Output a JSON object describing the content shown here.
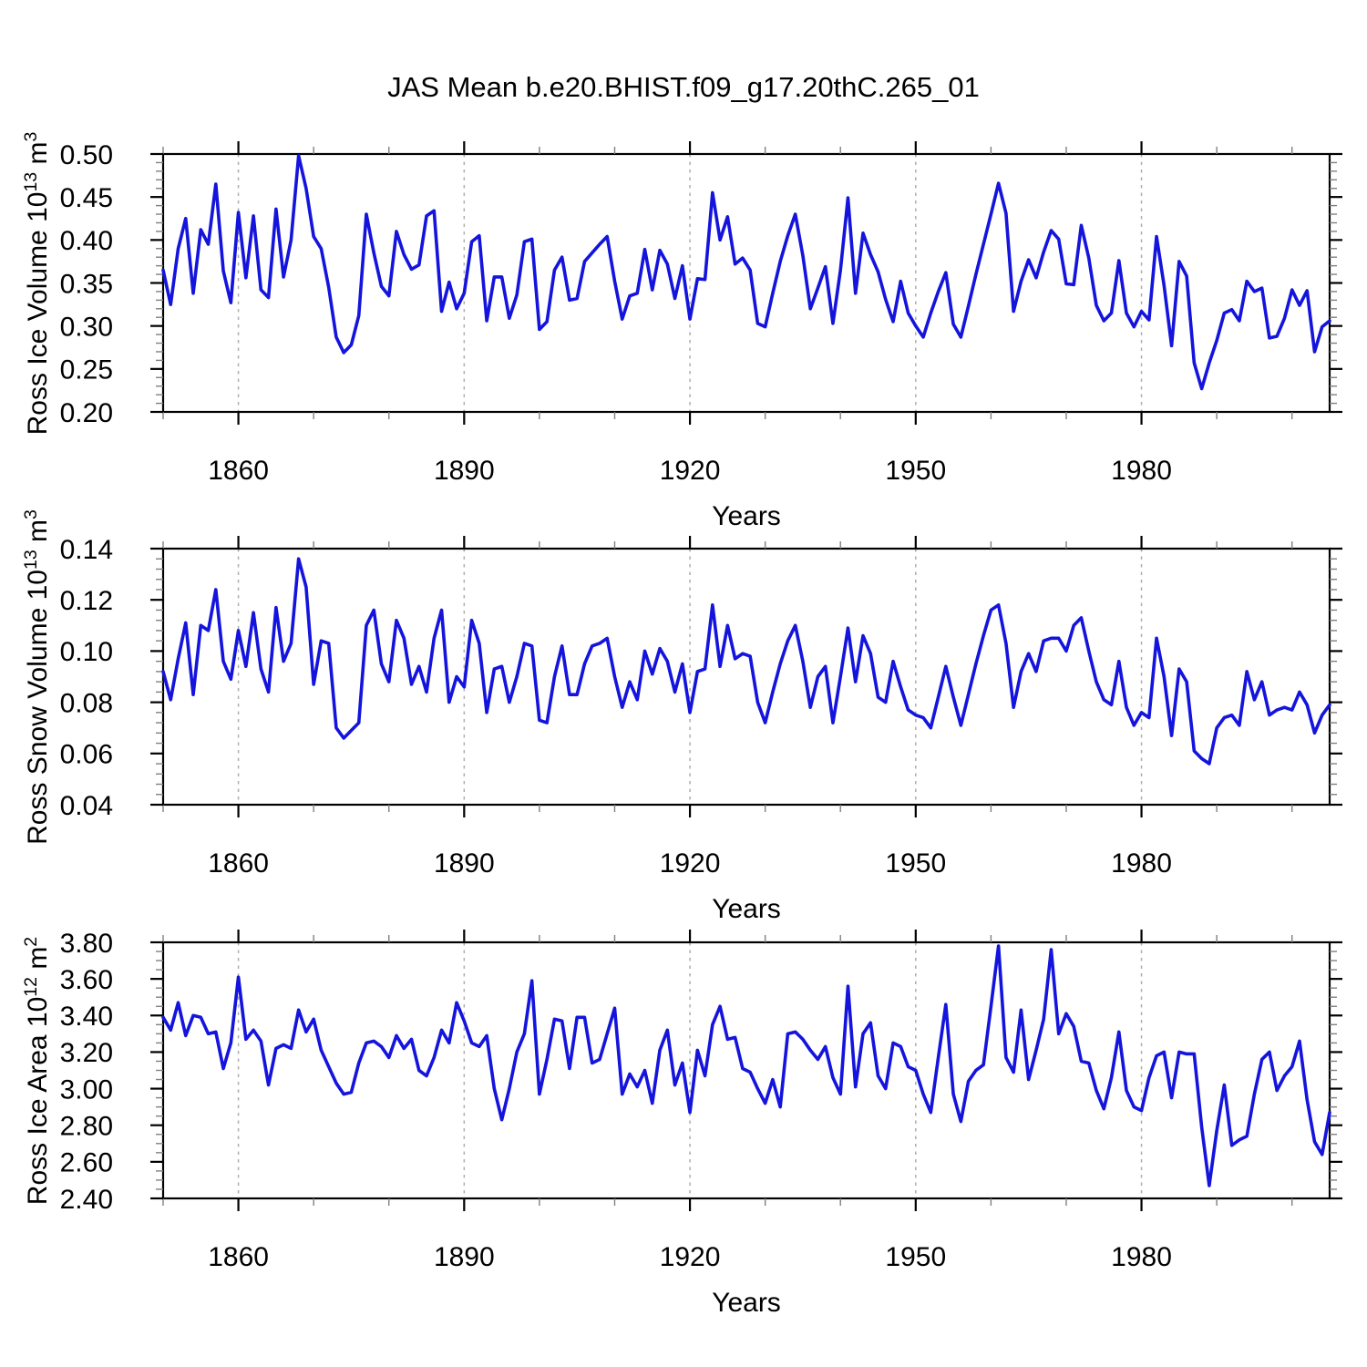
{
  "title": "JAS Mean b.e20.BHIST.f09_g17.20thC.265_01",
  "xlabel": "Years",
  "colors": {
    "line": "#1414dd",
    "grid": "#adadad",
    "axis": "#000000",
    "minor_tick": "#808080",
    "background": "#ffffff"
  },
  "chart_data": [
    {
      "type": "line",
      "name": "ross-ice-volume",
      "ylabel_plain": "Ross Ice Volume 10^13 m^3",
      "ylabel_parts": [
        {
          "text": "Ross Ice Volume 10"
        },
        {
          "text": "13",
          "sup": true
        },
        {
          "text": " m"
        },
        {
          "text": "3",
          "sup": true
        }
      ],
      "xlabel": "Years",
      "xlim": [
        1850,
        2005
      ],
      "x_start": 1850,
      "x_step": 1,
      "x_end": 2005,
      "xticks": [
        1860,
        1890,
        1920,
        1950,
        1980
      ],
      "x_minor_step": 10,
      "ylim": [
        0.2,
        0.5
      ],
      "yticks": [
        0.2,
        0.25,
        0.3,
        0.35,
        0.4,
        0.45,
        0.5
      ],
      "ytick_decimals": 2,
      "y_minor_step": 0.01,
      "grid": "vertical dashed at major xticks",
      "legend": "none",
      "values": [
        0.365,
        0.325,
        0.39,
        0.425,
        0.338,
        0.412,
        0.395,
        0.465,
        0.364,
        0.327,
        0.432,
        0.356,
        0.428,
        0.342,
        0.333,
        0.436,
        0.357,
        0.4,
        0.498,
        0.46,
        0.404,
        0.39,
        0.345,
        0.287,
        0.269,
        0.278,
        0.312,
        0.43,
        0.385,
        0.346,
        0.335,
        0.41,
        0.383,
        0.366,
        0.371,
        0.428,
        0.434,
        0.317,
        0.351,
        0.32,
        0.338,
        0.398,
        0.405,
        0.306,
        0.357,
        0.357,
        0.309,
        0.336,
        0.398,
        0.401,
        0.296,
        0.305,
        0.365,
        0.38,
        0.33,
        0.332,
        0.375,
        0.385,
        0.395,
        0.404,
        0.352,
        0.308,
        0.335,
        0.338,
        0.389,
        0.342,
        0.388,
        0.372,
        0.332,
        0.37,
        0.308,
        0.355,
        0.354,
        0.455,
        0.4,
        0.427,
        0.372,
        0.379,
        0.365,
        0.303,
        0.299,
        0.338,
        0.375,
        0.405,
        0.43,
        0.382,
        0.32,
        0.344,
        0.369,
        0.303,
        0.365,
        0.449,
        0.338,
        0.408,
        0.383,
        0.363,
        0.331,
        0.305,
        0.352,
        0.315,
        0.3,
        0.287,
        0.315,
        0.34,
        0.362,
        0.302,
        0.287,
        0.323,
        0.36,
        0.395,
        0.43,
        0.466,
        0.431,
        0.317,
        0.352,
        0.377,
        0.356,
        0.386,
        0.411,
        0.401,
        0.349,
        0.348,
        0.417,
        0.379,
        0.324,
        0.306,
        0.315,
        0.376,
        0.315,
        0.299,
        0.317,
        0.307,
        0.404,
        0.347,
        0.277,
        0.375,
        0.358,
        0.257,
        0.227,
        0.257,
        0.283,
        0.315,
        0.319,
        0.306,
        0.352,
        0.34,
        0.344,
        0.286,
        0.288,
        0.309,
        0.342,
        0.324,
        0.341,
        0.27,
        0.299,
        0.306
      ]
    },
    {
      "type": "line",
      "name": "ross-snow-volume",
      "ylabel_plain": "Ross Snow Volume 10^13 m^3",
      "ylabel_parts": [
        {
          "text": "Ross Snow Volume 10"
        },
        {
          "text": "13",
          "sup": true
        },
        {
          "text": " m"
        },
        {
          "text": "3",
          "sup": true
        }
      ],
      "xlabel": "Years",
      "xlim": [
        1850,
        2005
      ],
      "x_start": 1850,
      "x_step": 1,
      "x_end": 2005,
      "xticks": [
        1860,
        1890,
        1920,
        1950,
        1980
      ],
      "x_minor_step": 10,
      "ylim": [
        0.04,
        0.14
      ],
      "yticks": [
        0.04,
        0.06,
        0.08,
        0.1,
        0.12,
        0.14
      ],
      "ytick_decimals": 2,
      "y_minor_step": 0.004,
      "grid": "vertical dashed at major xticks",
      "legend": "none",
      "values": [
        0.092,
        0.081,
        0.097,
        0.111,
        0.083,
        0.11,
        0.108,
        0.124,
        0.096,
        0.089,
        0.108,
        0.094,
        0.115,
        0.093,
        0.084,
        0.117,
        0.096,
        0.103,
        0.136,
        0.125,
        0.087,
        0.104,
        0.103,
        0.07,
        0.066,
        0.069,
        0.072,
        0.11,
        0.116,
        0.095,
        0.088,
        0.112,
        0.105,
        0.087,
        0.094,
        0.084,
        0.105,
        0.116,
        0.08,
        0.09,
        0.086,
        0.112,
        0.103,
        0.076,
        0.093,
        0.094,
        0.08,
        0.09,
        0.103,
        0.102,
        0.073,
        0.072,
        0.09,
        0.102,
        0.083,
        0.083,
        0.095,
        0.102,
        0.103,
        0.105,
        0.09,
        0.078,
        0.088,
        0.081,
        0.1,
        0.091,
        0.101,
        0.096,
        0.084,
        0.095,
        0.076,
        0.092,
        0.093,
        0.118,
        0.094,
        0.11,
        0.097,
        0.099,
        0.098,
        0.08,
        0.072,
        0.084,
        0.095,
        0.104,
        0.11,
        0.096,
        0.078,
        0.09,
        0.094,
        0.072,
        0.09,
        0.109,
        0.088,
        0.106,
        0.099,
        0.082,
        0.08,
        0.096,
        0.086,
        0.077,
        0.075,
        0.074,
        0.07,
        0.082,
        0.094,
        0.082,
        0.071,
        0.083,
        0.095,
        0.106,
        0.116,
        0.118,
        0.103,
        0.078,
        0.092,
        0.099,
        0.092,
        0.104,
        0.105,
        0.105,
        0.1,
        0.11,
        0.113,
        0.1,
        0.088,
        0.081,
        0.079,
        0.096,
        0.078,
        0.071,
        0.076,
        0.074,
        0.105,
        0.09,
        0.067,
        0.093,
        0.088,
        0.061,
        0.058,
        0.056,
        0.07,
        0.074,
        0.075,
        0.071,
        0.092,
        0.081,
        0.088,
        0.075,
        0.077,
        0.078,
        0.077,
        0.084,
        0.079,
        0.068,
        0.075,
        0.079
      ]
    },
    {
      "type": "line",
      "name": "ross-ice-area",
      "ylabel_plain": "Ross Ice Area 10^12 m^2",
      "ylabel_parts": [
        {
          "text": "Ross Ice Area 10"
        },
        {
          "text": "12",
          "sup": true
        },
        {
          "text": " m"
        },
        {
          "text": "2",
          "sup": true
        }
      ],
      "xlabel": "Years",
      "xlim": [
        1850,
        2005
      ],
      "x_start": 1850,
      "x_step": 1,
      "x_end": 2005,
      "xticks": [
        1860,
        1890,
        1920,
        1950,
        1980
      ],
      "x_minor_step": 10,
      "ylim": [
        2.4,
        3.8
      ],
      "yticks": [
        2.4,
        2.6,
        2.8,
        3.0,
        3.2,
        3.4,
        3.6,
        3.8
      ],
      "ytick_decimals": 2,
      "y_minor_step": 0.05,
      "grid": "vertical dashed at major xticks",
      "legend": "none",
      "values": [
        3.39,
        3.32,
        3.47,
        3.29,
        3.4,
        3.39,
        3.3,
        3.31,
        3.11,
        3.25,
        3.61,
        3.27,
        3.32,
        3.26,
        3.02,
        3.22,
        3.24,
        3.22,
        3.43,
        3.31,
        3.38,
        3.21,
        3.12,
        3.03,
        2.97,
        2.98,
        3.14,
        3.25,
        3.26,
        3.23,
        3.17,
        3.29,
        3.22,
        3.27,
        3.1,
        3.07,
        3.17,
        3.32,
        3.25,
        3.47,
        3.37,
        3.25,
        3.23,
        3.29,
        3.0,
        2.83,
        3.0,
        3.2,
        3.3,
        3.59,
        2.97,
        3.16,
        3.38,
        3.37,
        3.11,
        3.39,
        3.39,
        3.14,
        3.16,
        3.3,
        3.44,
        2.97,
        3.08,
        3.01,
        3.1,
        2.92,
        3.21,
        3.32,
        3.02,
        3.14,
        2.87,
        3.21,
        3.07,
        3.35,
        3.45,
        3.27,
        3.28,
        3.11,
        3.09,
        3.0,
        2.92,
        3.05,
        2.9,
        3.3,
        3.31,
        3.27,
        3.21,
        3.16,
        3.23,
        3.06,
        2.97,
        3.56,
        3.01,
        3.3,
        3.36,
        3.07,
        3.0,
        3.25,
        3.23,
        3.12,
        3.1,
        2.97,
        2.87,
        3.17,
        3.46,
        2.97,
        2.82,
        3.04,
        3.1,
        3.13,
        3.45,
        3.78,
        3.17,
        3.09,
        3.43,
        3.05,
        3.21,
        3.38,
        3.76,
        3.3,
        3.41,
        3.34,
        3.15,
        3.14,
        2.99,
        2.89,
        3.06,
        3.31,
        2.99,
        2.9,
        2.88,
        3.06,
        3.18,
        3.2,
        2.95,
        3.2,
        3.19,
        3.19,
        2.79,
        2.47,
        2.77,
        3.02,
        2.69,
        2.72,
        2.74,
        2.97,
        3.16,
        3.2,
        2.99,
        3.07,
        3.12,
        3.26,
        2.94,
        2.71,
        2.64,
        2.87
      ]
    }
  ]
}
